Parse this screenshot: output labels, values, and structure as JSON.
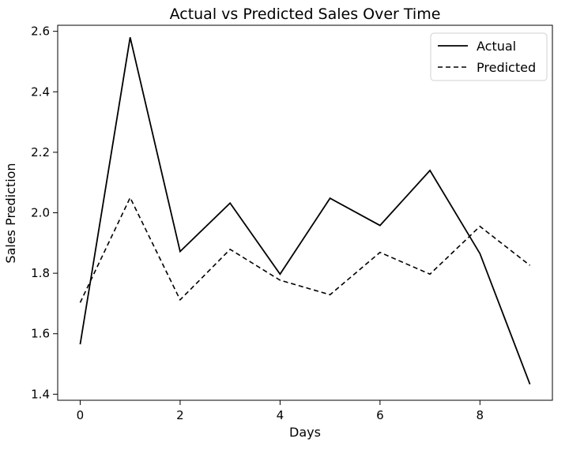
{
  "chart_data": {
    "type": "line",
    "title": "Actual vs Predicted Sales Over Time",
    "xlabel": "Days",
    "ylabel": "Sales Prediction",
    "x": [
      0,
      1,
      2,
      3,
      4,
      5,
      6,
      7,
      8,
      9
    ],
    "xlim": [
      -0.45,
      9.45
    ],
    "ylim": [
      1.38,
      2.62
    ],
    "xticks": [
      0,
      2,
      4,
      6,
      8
    ],
    "yticks": [
      1.4,
      1.6,
      1.8,
      2.0,
      2.2,
      2.4,
      2.6
    ],
    "xtick_labels": [
      "0",
      "2",
      "4",
      "6",
      "8"
    ],
    "ytick_labels": [
      "1.4",
      "1.6",
      "1.8",
      "2.0",
      "2.2",
      "2.4",
      "2.6"
    ],
    "grid": false,
    "legend_position": "top-right",
    "series": [
      {
        "name": "Actual",
        "style": "solid",
        "color": "#000000",
        "values": [
          1.565,
          2.58,
          1.872,
          2.032,
          1.797,
          2.048,
          1.958,
          2.14,
          1.865,
          1.433
        ]
      },
      {
        "name": "Predicted",
        "style": "dashed",
        "color": "#000000",
        "values": [
          1.703,
          2.05,
          1.712,
          1.879,
          1.777,
          1.729,
          1.869,
          1.797,
          1.955,
          1.826
        ]
      }
    ]
  }
}
